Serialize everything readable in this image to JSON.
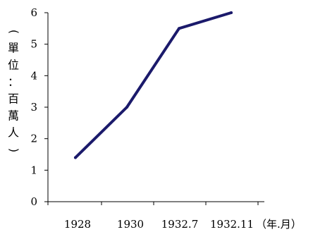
{
  "chart_data": {
    "type": "line",
    "categories": [
      "1928",
      "1930",
      "1932.7",
      "1932.11"
    ],
    "series": [
      {
        "values": [
          1.4,
          3.0,
          5.5,
          6.0
        ],
        "color": "#1b1a6b"
      }
    ],
    "ylabel": "(單位：百萬人)",
    "xunit": "（年.月）",
    "ylim": [
      0,
      6
    ],
    "yticks": [
      0,
      1,
      2,
      3,
      4,
      5,
      6
    ],
    "grid": false,
    "legend": "none"
  }
}
